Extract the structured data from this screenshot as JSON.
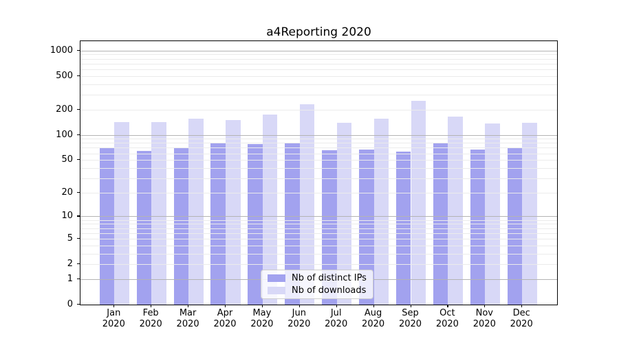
{
  "title": "a4Reporting 2020",
  "chart_data": {
    "type": "bar",
    "title": "a4Reporting 2020",
    "categories": [
      "Jan",
      "Feb",
      "Mar",
      "Apr",
      "May",
      "Jun",
      "Jul",
      "Aug",
      "Sep",
      "Oct",
      "Nov",
      "Dec"
    ],
    "category_sub": "2020",
    "series": [
      {
        "name": "Nb of distinct IPs",
        "color": "#a2a2ef",
        "values": [
          70,
          64,
          69,
          80,
          78,
          80,
          65,
          67,
          63,
          81,
          67,
          70
        ]
      },
      {
        "name": "Nb of downloads",
        "color": "#d8d8f7",
        "values": [
          142,
          141,
          157,
          150,
          175,
          230,
          138,
          156,
          253,
          164,
          137,
          140
        ]
      }
    ],
    "y_scale": "log1p",
    "y_ticks": [
      0,
      1,
      2,
      5,
      10,
      20,
      50,
      100,
      200,
      500,
      1000
    ],
    "y_major_gridlines": [
      1,
      10,
      100,
      1000
    ],
    "y_minor_gridlines": [
      2,
      3,
      4,
      5,
      6,
      7,
      8,
      9,
      20,
      30,
      40,
      50,
      60,
      70,
      80,
      90,
      200,
      300,
      400,
      500,
      600,
      700,
      800,
      900
    ],
    "ylim": [
      0,
      1290
    ],
    "grid": true,
    "legend_position": "lower center",
    "colors": {
      "major_grid": "#b3b3b3",
      "minor_grid": "#ebebeb",
      "axis": "#000000",
      "text": "#000000",
      "legend_border": "#cccccc",
      "legend_bg": "rgba(255,255,255,0.8)"
    }
  }
}
